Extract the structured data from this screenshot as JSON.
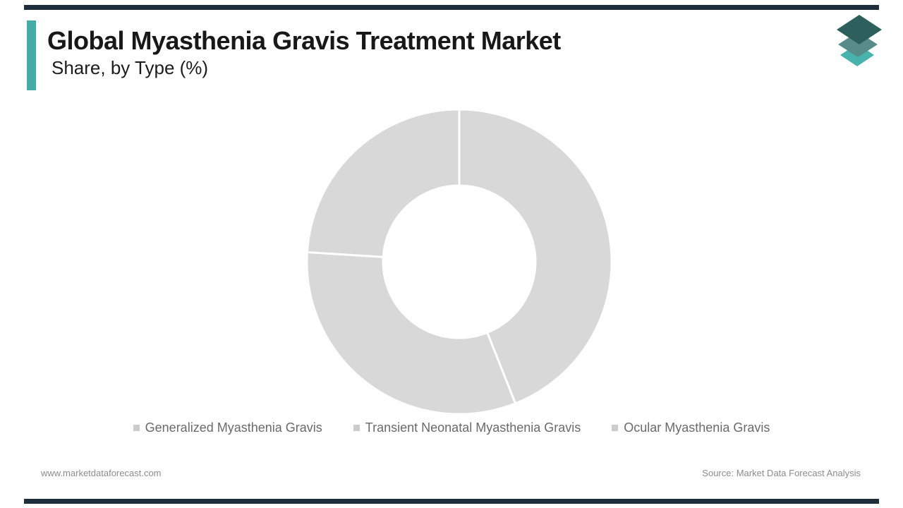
{
  "header": {
    "title": "Global Myasthenia Gravis Treatment Market",
    "subtitle": "Share, by Type (%)"
  },
  "brand": {
    "accent_bar_color": "#46aca8",
    "rule_bar_color": "#1d2d3a",
    "logo_name": "layered-squares-logo",
    "logo_colors": [
      "#2d5f5c",
      "#578c88",
      "#48b2ad"
    ]
  },
  "chart_data": {
    "type": "pie",
    "donut": true,
    "title": "Global Myasthenia Gravis Treatment Market Share, by Type (%)",
    "categories": [
      "Generalized Myasthenia Gravis",
      "Transient Neonatal Myasthenia Gravis",
      "Ocular Myasthenia Gravis"
    ],
    "values": [
      44,
      32,
      24
    ],
    "unit": "%",
    "start_angle_deg": 0,
    "direction": "clockwise",
    "inner_radius_ratio": 0.5,
    "slice_color": "#d8d8d8",
    "divider_color": "#ffffff",
    "legend_position": "bottom",
    "legend_marker_color": "#cccccc",
    "data_labels": false
  },
  "footer": {
    "website": "www.marketdataforecast.com",
    "source": "Source: Market Data Forecast Analysis"
  }
}
